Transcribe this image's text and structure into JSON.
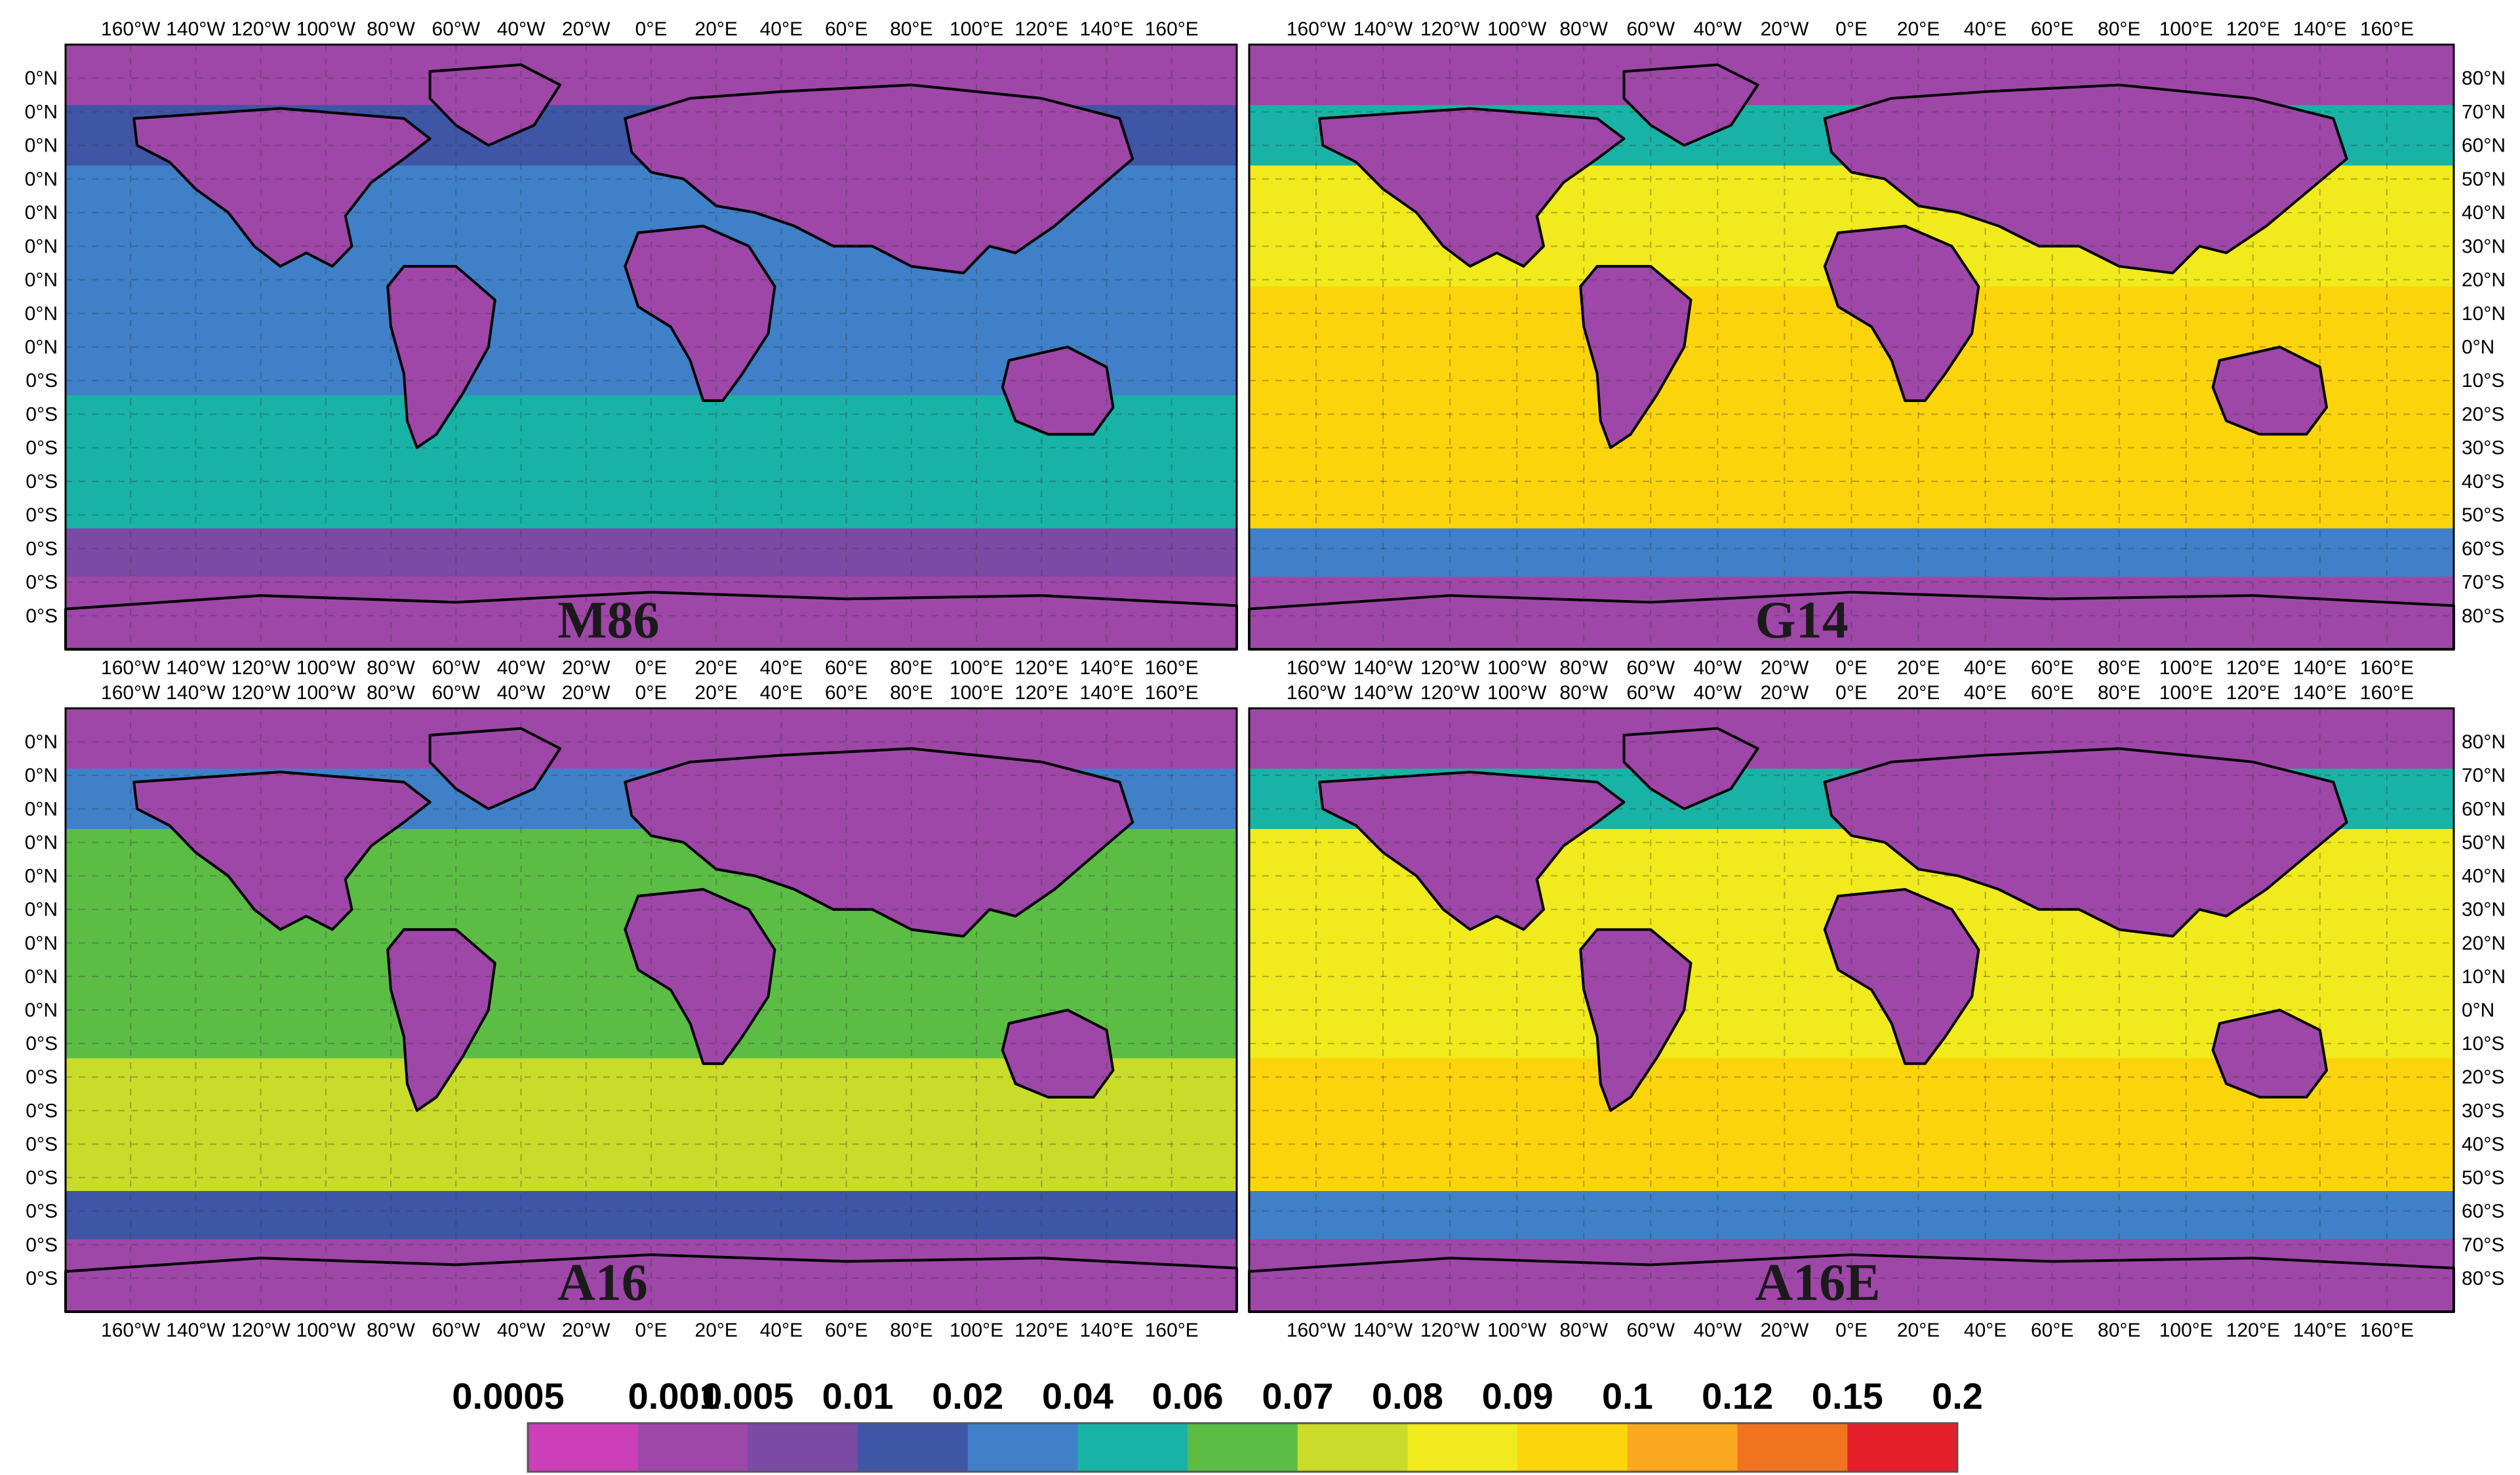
{
  "panels": [
    {
      "label": "M86",
      "left_labels": [
        "0°N",
        "0°N",
        "0°N",
        "0°N",
        "0°N",
        "0°N",
        "0°N",
        "0°N",
        "0°N",
        "0°S",
        "0°S",
        "0°S",
        "0°S",
        "0°S",
        "0°S",
        "0°S",
        "0°S"
      ],
      "right_labels": []
    },
    {
      "label": "G14",
      "left_labels": [],
      "right_labels": [
        "80°N",
        "70°N",
        "60°N",
        "50°N",
        "40°N",
        "30°N",
        "20°N",
        "10°N",
        "0°N",
        "10°S",
        "20°S",
        "30°S",
        "40°S",
        "50°S",
        "60°S",
        "70°S",
        "80°S"
      ]
    },
    {
      "label": "A16",
      "left_labels": [
        "0°N",
        "0°N",
        "0°N",
        "0°N",
        "0°N",
        "0°N",
        "0°N",
        "0°N",
        "0°N",
        "0°S",
        "0°S",
        "0°S",
        "0°S",
        "0°S",
        "0°S",
        "0°S",
        "0°S"
      ],
      "right_labels": []
    },
    {
      "label": "A16E",
      "left_labels": [],
      "right_labels": [
        "80°N",
        "70°N",
        "60°N",
        "50°N",
        "40°N",
        "30°N",
        "20°N",
        "10°N",
        "0°N",
        "10°S",
        "20°S",
        "30°S",
        "40°S",
        "50°S",
        "60°S",
        "70°S",
        "80°S"
      ]
    }
  ],
  "lon_labels": [
    "160°W",
    "140°W",
    "120°W",
    "100°W",
    "80°W",
    "60°W",
    "40°W",
    "20°W",
    "0°E",
    "20°E",
    "40°E",
    "60°E",
    "80°E",
    "100°E",
    "120°E",
    "140°E",
    "160°E"
  ],
  "colorbar": {
    "labels": [
      "0.0005",
      "0.001",
      "0.005",
      "0.01",
      "0.02",
      "0.04",
      "0.06",
      "0.07",
      "0.08",
      "0.09",
      "0.1",
      "0.12",
      "0.15",
      "0.2"
    ],
    "colors": [
      "#cc3fb8",
      "#9e47a8",
      "#7a4aa4",
      "#3f55a6",
      "#3f80c8",
      "#18b3a6",
      "#5cbd45",
      "#c9dc2a",
      "#f1ea1c",
      "#fcd40b",
      "#f9a81f",
      "#f2731f",
      "#e6202a"
    ]
  },
  "ocean_levels": {
    "M86": {
      "arctic": 0.001,
      "north_high": 0.01,
      "north_mid": 0.02,
      "tropics": 0.02,
      "south_mid": 0.04,
      "south_high": 0.005,
      "antarctic": 0.001
    },
    "G14": {
      "arctic": 0.001,
      "north_high": 0.04,
      "north_mid": 0.08,
      "tropics": 0.09,
      "south_mid": 0.09,
      "south_high": 0.02,
      "antarctic": 0.001
    },
    "A16": {
      "arctic": 0.001,
      "north_high": 0.02,
      "north_mid": 0.06,
      "tropics": 0.06,
      "south_mid": 0.07,
      "south_high": 0.01,
      "antarctic": 0.001
    },
    "A16E": {
      "arctic": 0.001,
      "north_high": 0.04,
      "north_mid": 0.08,
      "tropics": 0.08,
      "south_mid": 0.09,
      "south_high": 0.02,
      "antarctic": 0.001
    }
  },
  "land_level": 0.001
}
